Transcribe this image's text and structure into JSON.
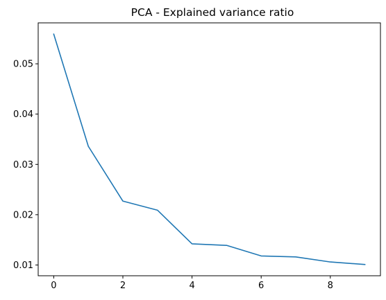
{
  "chart_data": {
    "type": "line",
    "title": "PCA - Explained variance ratio",
    "xlabel": "",
    "ylabel": "",
    "x": [
      0,
      1,
      2,
      3,
      4,
      5,
      6,
      7,
      8,
      9
    ],
    "series": [
      {
        "color": "#1f77b4",
        "values": [
          0.0559,
          0.0336,
          0.0227,
          0.0209,
          0.0142,
          0.0139,
          0.0118,
          0.0116,
          0.0106,
          0.0101
        ]
      }
    ],
    "xlim": [
      -0.45,
      9.45
    ],
    "ylim": [
      0.00786,
      0.05814
    ],
    "xticks": [
      0,
      2,
      4,
      6,
      8
    ],
    "xtick_labels": [
      "0",
      "2",
      "4",
      "6",
      "8"
    ],
    "yticks": [
      0.01,
      0.02,
      0.03,
      0.04,
      0.05
    ],
    "ytick_labels": [
      "0.01",
      "0.02",
      "0.03",
      "0.04",
      "0.05"
    ],
    "grid": false,
    "legend": false
  }
}
